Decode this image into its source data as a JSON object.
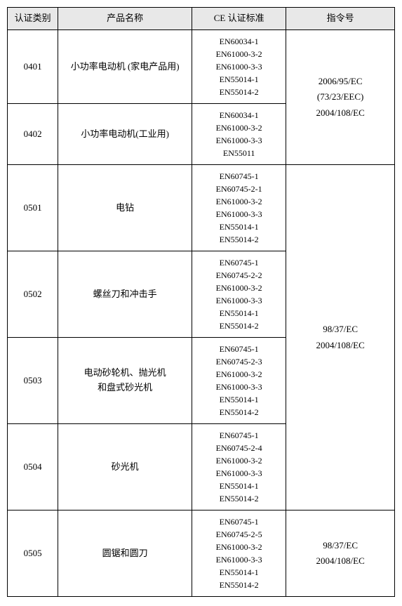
{
  "headers": {
    "category": "认证类别",
    "product": "产品名称",
    "standard": "CE 认证标准",
    "directive": "指令号"
  },
  "rows": {
    "r0401": {
      "cat": "0401",
      "name": "小功率电动机 (家电产品用)",
      "std": [
        "EN60034-1",
        "EN61000-3-2",
        "EN61000-3-3",
        "EN55014-1",
        "EN55014-2"
      ]
    },
    "r0402": {
      "cat": "0402",
      "name": "小功率电动机(工业用)",
      "std": [
        "EN60034-1",
        "EN61000-3-2",
        "EN61000-3-3",
        "EN55011"
      ]
    },
    "r0501": {
      "cat": "0501",
      "name": "电钻",
      "std": [
        "EN60745-1",
        "EN60745-2-1",
        "EN61000-3-2",
        "EN61000-3-3",
        "EN55014-1",
        "EN55014-2"
      ]
    },
    "r0502": {
      "cat": "0502",
      "name": "螺丝刀和冲击手",
      "std": [
        "EN60745-1",
        "EN60745-2-2",
        "EN61000-3-2",
        "EN61000-3-3",
        "EN55014-1",
        "EN55014-2"
      ]
    },
    "r0503": {
      "cat": "0503",
      "name_l1": "电动砂轮机、抛光机",
      "name_l2": "和盘式砂光机",
      "std": [
        "EN60745-1",
        "EN60745-2-3",
        "EN61000-3-2",
        "EN61000-3-3",
        "EN55014-1",
        "EN55014-2"
      ]
    },
    "r0504": {
      "cat": "0504",
      "name": "砂光机",
      "std": [
        "EN60745-1",
        "EN60745-2-4",
        "EN61000-3-2",
        "EN61000-3-3",
        "EN55014-1",
        "EN55014-2"
      ]
    },
    "r0505": {
      "cat": "0505",
      "name": "圆锯和圆刀",
      "std": [
        "EN60745-1",
        "EN60745-2-5",
        "EN61000-3-2",
        "EN61000-3-3",
        "EN55014-1",
        "EN55014-2"
      ]
    }
  },
  "directives": {
    "grp1": [
      "2006/95/EC",
      "(73/23/EEC)",
      "2004/108/EC"
    ],
    "grp2": [
      "98/37/EC",
      "2004/108/EC"
    ],
    "grp3": [
      "98/37/EC",
      "2004/108/EC"
    ]
  },
  "style": {
    "header_bg": "#e8e8e8",
    "border_color": "#000000",
    "font_size_cell": 13,
    "font_size_std": 12,
    "col_widths": {
      "cat": 70,
      "name": 185,
      "std": 130,
      "dir": 150
    }
  }
}
